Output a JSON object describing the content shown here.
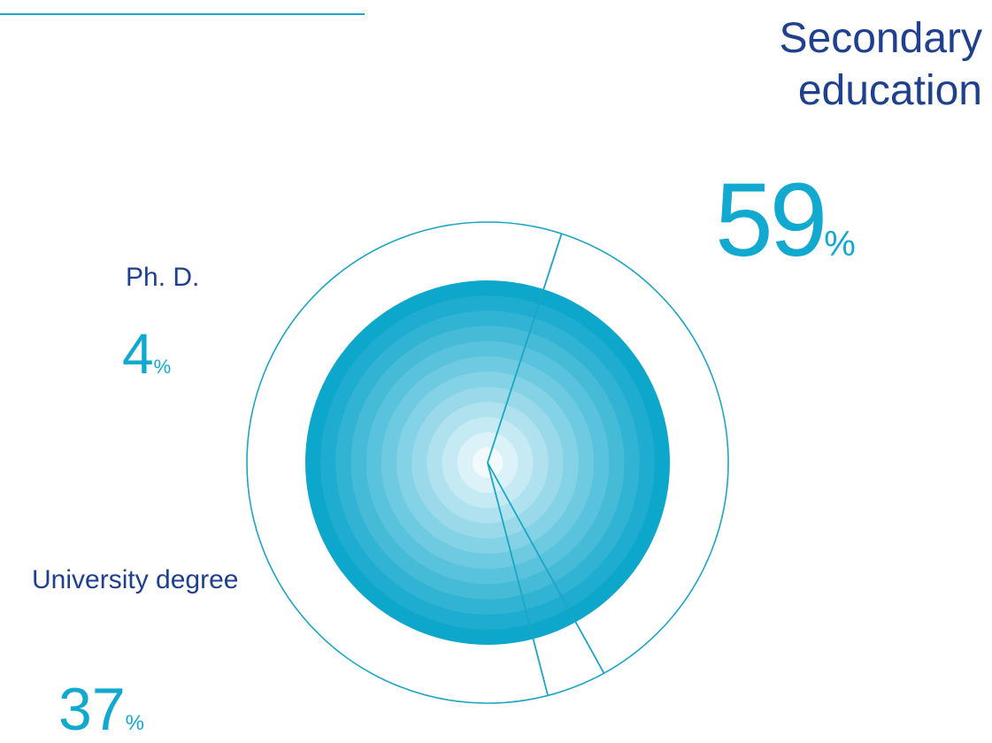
{
  "chart_data": {
    "type": "pie",
    "categories": [
      "Secondary education",
      "Ph. D.",
      "University degree"
    ],
    "values": [
      59,
      4,
      37
    ],
    "unit": "%",
    "colors": {
      "outline": "#1ba6c4",
      "label_text": "#1f3f8f",
      "value_text": "#11a9cf",
      "disc_outer": "#0ea7cc",
      "disc_inner": "#f2fafd"
    }
  },
  "labels": {
    "secondary": "Secondary education",
    "secondary_value": "59",
    "phd": "Ph. D.",
    "phd_value": "4",
    "university": "University degree",
    "university_value": "37",
    "percent_sign": "%"
  }
}
